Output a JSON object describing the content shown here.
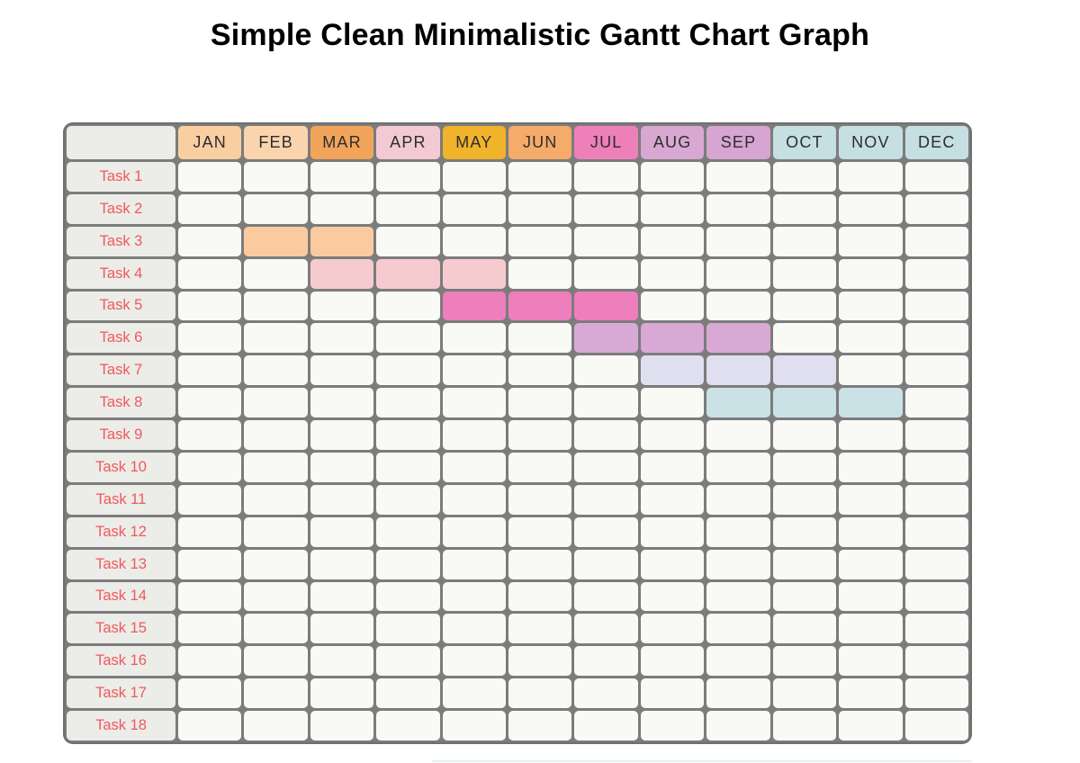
{
  "title": "Simple Clean Minimalistic Gantt Chart Graph",
  "chart_data": {
    "type": "gantt",
    "title": "Simple Clean Minimalistic Gantt Chart Graph",
    "months": [
      "JAN",
      "FEB",
      "MAR",
      "APR",
      "MAY",
      "JUN",
      "JUL",
      "AUG",
      "SEP",
      "OCT",
      "NOV",
      "DEC"
    ],
    "month_header_colors": [
      "#F9CFA2",
      "#FAD4AD",
      "#F2A55A",
      "#F3CAD3",
      "#F1B32B",
      "#F5AB69",
      "#EE80B9",
      "#D8A8D3",
      "#D6A5D1",
      "#C6DFE3",
      "#C6DFE3",
      "#C6DFE3"
    ],
    "legend": "none",
    "grid": "on",
    "tasks": [
      {
        "label": "Task 1",
        "bar": null
      },
      {
        "label": "Task 2",
        "bar": null
      },
      {
        "label": "Task 3",
        "bar": {
          "start_month": "FEB",
          "end_month": "MAR",
          "color": "#FBCB9F"
        }
      },
      {
        "label": "Task 4",
        "bar": {
          "start_month": "MAR",
          "end_month": "MAY",
          "color": "#F6CBCF"
        }
      },
      {
        "label": "Task 5",
        "bar": {
          "start_month": "MAY",
          "end_month": "JUL",
          "color": "#EE7FBC"
        }
      },
      {
        "label": "Task 6",
        "bar": {
          "start_month": "JUL",
          "end_month": "SEP",
          "color": "#D9A9D5"
        }
      },
      {
        "label": "Task 7",
        "bar": {
          "start_month": "AUG",
          "end_month": "OCT",
          "color": "#DFDFF0"
        }
      },
      {
        "label": "Task 8",
        "bar": {
          "start_month": "SEP",
          "end_month": "NOV",
          "color": "#CAE2E6"
        }
      },
      {
        "label": "Task 9",
        "bar": null
      },
      {
        "label": "Task 10",
        "bar": null
      },
      {
        "label": "Task 11",
        "bar": null
      },
      {
        "label": "Task 12",
        "bar": null
      },
      {
        "label": "Task 13",
        "bar": null
      },
      {
        "label": "Task 14",
        "bar": null
      },
      {
        "label": "Task 15",
        "bar": null
      },
      {
        "label": "Task 16",
        "bar": null
      },
      {
        "label": "Task 17",
        "bar": null
      },
      {
        "label": "Task 18",
        "bar": null
      }
    ]
  },
  "styles": {
    "grid_line_color": "#7C7C7C",
    "outer_border_color": "#6F6F6F",
    "cell_bg": "#F9F9F6",
    "label_cell_bg": "#ECECE9",
    "task_label_color": "#EE5A5A",
    "header_text_color": "#2D2D2D",
    "title_color": "#000000"
  }
}
